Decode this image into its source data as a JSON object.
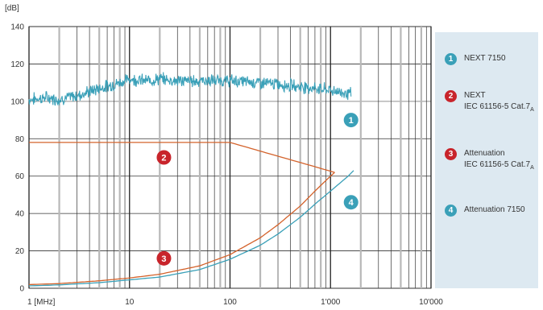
{
  "chart_data": {
    "type": "line",
    "yunit": "[dB]",
    "ylim": [
      0,
      140
    ],
    "yticks": [
      0,
      20,
      40,
      60,
      80,
      100,
      120,
      140
    ],
    "xscale": "log",
    "xlim": [
      1,
      10000
    ],
    "xticks": [
      {
        "value": 1,
        "label": "1 [MHz]"
      },
      {
        "value": 10,
        "label": "10"
      },
      {
        "value": 100,
        "label": "100"
      },
      {
        "value": 1000,
        "label": "1'000"
      },
      {
        "value": 10000,
        "label": "10'000"
      }
    ],
    "grid": true,
    "legend_position": "right",
    "series": [
      {
        "id": "1",
        "name": "NEXT 7150",
        "color": "#3aa0b8",
        "noisy": true,
        "x": [
          1,
          1.5,
          2,
          3,
          5,
          8,
          10,
          15,
          20,
          30,
          50,
          100,
          200,
          500,
          1000,
          1600
        ],
        "y": [
          101,
          102,
          101,
          103,
          107,
          110,
          112,
          111,
          112,
          111,
          111,
          111,
          110,
          108,
          106,
          104
        ]
      },
      {
        "id": "2",
        "name": "NEXT",
        "color": "#d4632c",
        "x": [
          1,
          100,
          1100
        ],
        "y": [
          78,
          78,
          62
        ]
      },
      {
        "id": "3",
        "name": "Attenuation",
        "color": "#d4632c",
        "x": [
          1,
          2,
          5,
          10,
          20,
          50,
          100,
          200,
          300,
          500,
          700,
          1000,
          1100
        ],
        "y": [
          2,
          2.5,
          4,
          5.5,
          7.5,
          12,
          18,
          27,
          34,
          44,
          52,
          60,
          62
        ]
      },
      {
        "id": "4",
        "name": "Attenuation 7150",
        "color": "#3aa0b8",
        "x": [
          1,
          2,
          5,
          10,
          20,
          50,
          100,
          200,
          300,
          500,
          700,
          1000,
          1500,
          1700
        ],
        "y": [
          1.3,
          1.8,
          3,
          4.5,
          6,
          10,
          15.5,
          23,
          29,
          38,
          45,
          52,
          60,
          63
        ]
      }
    ],
    "markers": [
      {
        "label": "1",
        "color": "#3aa0b8",
        "x": 1600,
        "y": 90
      },
      {
        "label": "2",
        "color": "#c8242b",
        "x": 22,
        "y": 70
      },
      {
        "label": "3",
        "color": "#c8242b",
        "x": 22,
        "y": 16
      },
      {
        "label": "4",
        "color": "#3aa0b8",
        "x": 1600,
        "y": 46
      }
    ]
  },
  "legend": [
    {
      "badge": "1",
      "color": "#3aa0b8",
      "lines": [
        "NEXT 7150"
      ]
    },
    {
      "badge": "2",
      "color": "#c8242b",
      "lines": [
        "NEXT",
        "IEC 61156-5 Cat.7",
        "A"
      ]
    },
    {
      "badge": "3",
      "color": "#c8242b",
      "lines": [
        "Attenuation",
        "IEC 61156-5 Cat.7",
        "A"
      ]
    },
    {
      "badge": "4",
      "color": "#3aa0b8",
      "lines": [
        "Attenuation 7150"
      ]
    }
  ]
}
